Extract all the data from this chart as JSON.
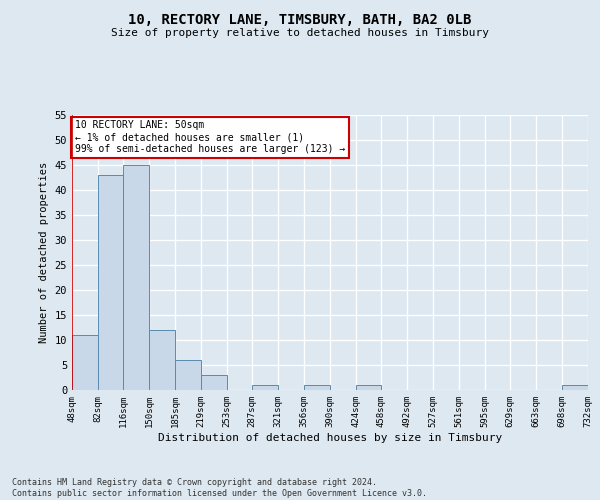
{
  "title": "10, RECTORY LANE, TIMSBURY, BATH, BA2 0LB",
  "subtitle": "Size of property relative to detached houses in Timsbury",
  "xlabel": "Distribution of detached houses by size in Timsbury",
  "ylabel": "Number of detached properties",
  "bar_edges": [
    48,
    82,
    116,
    150,
    185,
    219,
    253,
    287,
    321,
    356,
    390,
    424,
    458,
    492,
    527,
    561,
    595,
    629,
    663,
    698,
    732
  ],
  "bar_heights": [
    11,
    43,
    45,
    12,
    6,
    3,
    0,
    1,
    0,
    1,
    0,
    1,
    0,
    0,
    0,
    0,
    0,
    0,
    0,
    1
  ],
  "tick_labels": [
    "48sqm",
    "82sqm",
    "116sqm",
    "150sqm",
    "185sqm",
    "219sqm",
    "253sqm",
    "287sqm",
    "321sqm",
    "356sqm",
    "390sqm",
    "424sqm",
    "458sqm",
    "492sqm",
    "527sqm",
    "561sqm",
    "595sqm",
    "629sqm",
    "663sqm",
    "698sqm",
    "732sqm"
  ],
  "bar_color": "#c8d8e8",
  "bar_edge_color": "#5a8ab0",
  "annotation_box_color": "#ffffff",
  "annotation_border_color": "#cc0000",
  "annotation_text_line1": "10 RECTORY LANE: 50sqm",
  "annotation_text_line2": "← 1% of detached houses are smaller (1)",
  "annotation_text_line3": "99% of semi-detached houses are larger (123) →",
  "highlight_color": "#cc0000",
  "ylim": [
    0,
    55
  ],
  "yticks": [
    0,
    5,
    10,
    15,
    20,
    25,
    30,
    35,
    40,
    45,
    50,
    55
  ],
  "bg_color": "#dde8f0",
  "plot_bg_color": "#dde8f0",
  "grid_color": "#ffffff",
  "footer_line1": "Contains HM Land Registry data © Crown copyright and database right 2024.",
  "footer_line2": "Contains public sector information licensed under the Open Government Licence v3.0."
}
